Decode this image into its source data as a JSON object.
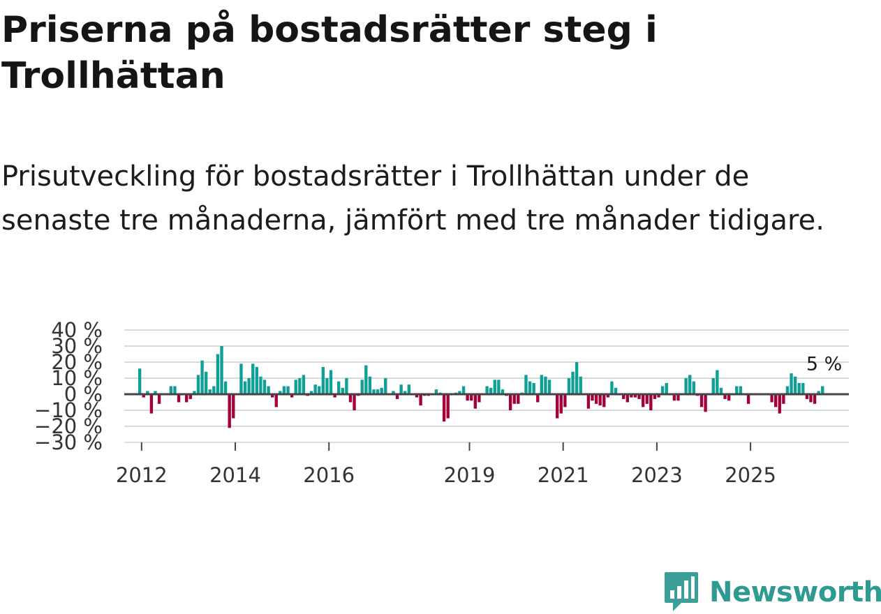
{
  "title": "Priserna på bostadsrätter steg i Trollhättan",
  "subtitle": "Prisutveckling för bostadsrätter i Trollhättan under de senaste tre månaderna, jämfört med tre månader tidigare.",
  "brand": {
    "name": "Newsworthy",
    "color": "#2f9a92",
    "icon": "bar-chart-bubble-icon"
  },
  "colors": {
    "positive": "#0e9f97",
    "negative": "#a5003c",
    "grid": "#d9d9d9",
    "zero_line": "#444444"
  },
  "chart_data": {
    "type": "bar",
    "title": "",
    "xlabel": "",
    "ylabel": "",
    "ylim": [
      -30,
      40
    ],
    "yticks": [
      40,
      30,
      20,
      10,
      0,
      -10,
      -20,
      -30
    ],
    "ytick_labels": [
      "40 %",
      "30 %",
      "20 %",
      "10 %",
      "0 %",
      "−10 %",
      "−20 %",
      "−30 %"
    ],
    "xlim": [
      2011.63,
      2027.1
    ],
    "xticks": [
      2012,
      2014,
      2016,
      2019,
      2021,
      2023,
      2025
    ],
    "xtick_labels": [
      "2012",
      "2014",
      "2016",
      "2019",
      "2021",
      "2023",
      "2025"
    ],
    "x_start": 2011.96,
    "x_step": 0.0833,
    "annotation": {
      "text": "5 %",
      "at": "last-value"
    },
    "values": [
      16,
      -2,
      2,
      -12,
      2,
      -6,
      0,
      0,
      5,
      5,
      -5,
      0,
      -5,
      -3,
      2,
      12,
      21,
      14,
      3,
      5,
      25,
      30,
      8,
      -21,
      -15,
      0,
      19,
      8,
      10,
      19,
      17,
      11,
      9,
      5,
      -2,
      -8,
      2,
      5,
      5,
      -2,
      9,
      10,
      12,
      -1,
      2,
      6,
      5,
      17,
      10,
      15,
      -2,
      8,
      4,
      10,
      -5,
      -10,
      -1,
      9,
      18,
      11,
      3,
      3,
      4,
      10,
      0,
      2,
      -3,
      6,
      2,
      6,
      0,
      -2,
      -7,
      -1,
      -1,
      0,
      3,
      1,
      -17,
      -15,
      0,
      1,
      2,
      5,
      -4,
      -4,
      -9,
      -5,
      0,
      5,
      4,
      9,
      9,
      3,
      -1,
      -10,
      -6,
      -6,
      1,
      12,
      8,
      7,
      -5,
      12,
      11,
      9,
      0,
      -15,
      -12,
      -8,
      10,
      14,
      20,
      11,
      0,
      -9,
      -4,
      -6,
      -7,
      -8,
      -2,
      8,
      4,
      0,
      -3,
      -5,
      -2,
      -2,
      -3,
      -8,
      -6,
      -10,
      -3,
      -2,
      5,
      7,
      0,
      -4,
      -4,
      0,
      10,
      12,
      8,
      -1,
      -8,
      -11,
      0,
      10,
      15,
      4,
      -3,
      -4,
      0,
      5,
      5,
      0,
      -6,
      0,
      0,
      0,
      0,
      0,
      -5,
      -8,
      -12,
      -6,
      5,
      13,
      11,
      7,
      7,
      -3,
      -5,
      -6,
      2,
      5
    ]
  }
}
